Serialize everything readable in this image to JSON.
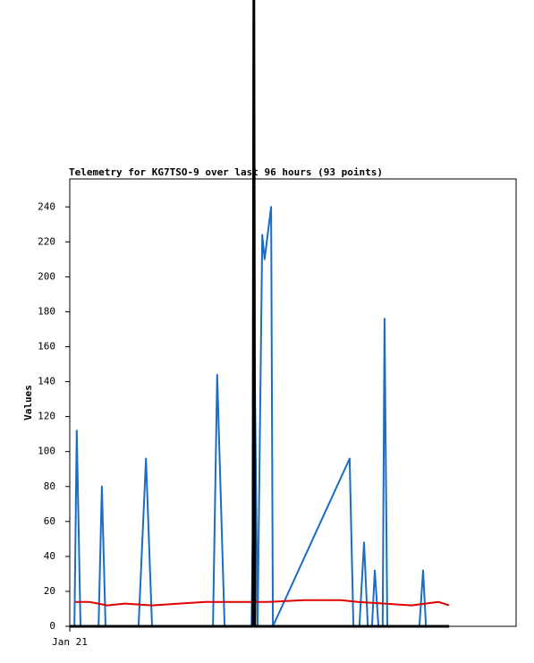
{
  "chart_data": {
    "type": "line",
    "title": "Telemetry for KG7TSO-9 over last 96 hours (93 points)",
    "y_label": "Values",
    "xlim": [
      0,
      96
    ],
    "xticks": [
      {
        "value": 0,
        "label": "Jan 21"
      }
    ],
    "ylim": [
      0,
      256
    ],
    "yticks": [
      0,
      20,
      40,
      60,
      80,
      100,
      120,
      140,
      160,
      180,
      200,
      220,
      240
    ],
    "series": [
      {
        "color": "#1a6cc4",
        "width": 2,
        "x": [
          1.0,
          1.5,
          2.3,
          6.2,
          6.9,
          7.7,
          14.8,
          16.4,
          17.7,
          30.8,
          31.7,
          33.3,
          39.1,
          39.8,
          40.4,
          41.4,
          41.9,
          43.3,
          43.7,
          60.2,
          61.0,
          62.3,
          63.3,
          64.1,
          65.0,
          65.6,
          66.4,
          67.3,
          67.7,
          68.3,
          75.2,
          76.0,
          76.6
        ],
        "values": [
          0,
          112,
          0,
          0,
          80,
          0,
          0,
          96,
          0,
          0,
          144,
          0,
          0,
          144,
          0,
          224,
          210,
          240,
          0,
          96,
          0,
          0,
          48,
          0,
          0,
          32,
          0,
          0,
          176,
          0,
          0,
          32,
          0
        ]
      },
      {
        "color": "#e00000",
        "width": 2,
        "x": [
          1.2,
          4.2,
          8.1,
          11.9,
          17.7,
          23.5,
          29.2,
          35.0,
          42.7,
          50.4,
          58.1,
          62.0,
          67.7,
          73.5,
          79.3,
          81.6
        ],
        "values": [
          14,
          14,
          12,
          13,
          12,
          13,
          14,
          14,
          14,
          15,
          15,
          14,
          13,
          12,
          14,
          12
        ]
      },
      {
        "color": "#000000",
        "width": 3,
        "x": [
          0.0,
          39.4,
          39.6,
          39.8,
          81.6
        ],
        "values": [
          0,
          0,
          360,
          0,
          0
        ]
      }
    ]
  }
}
